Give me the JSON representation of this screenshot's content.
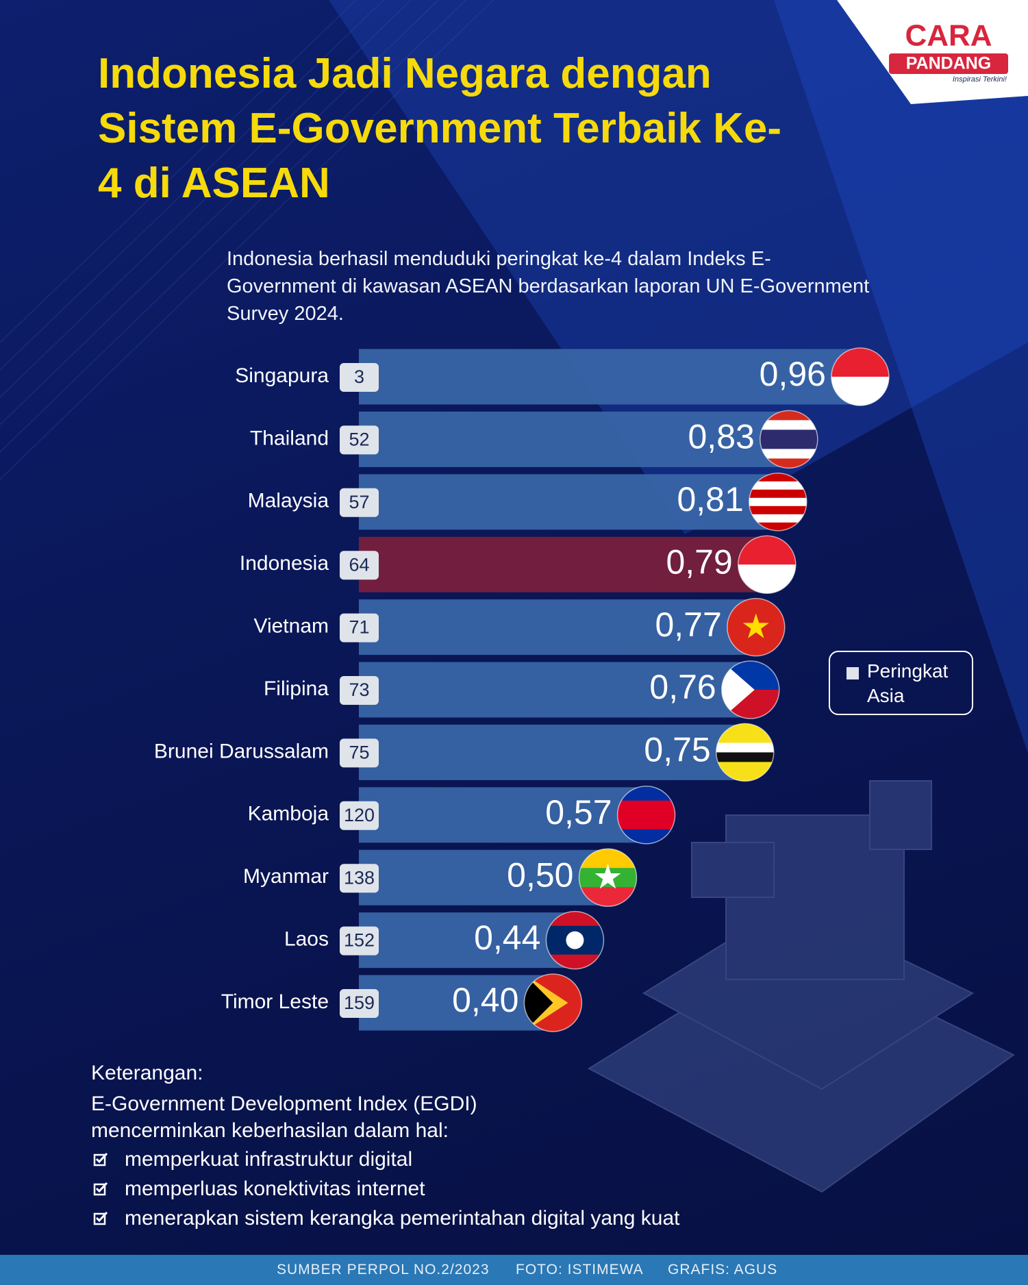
{
  "header": {
    "title": "Indonesia Jadi Negara dengan Sistem E-Government Terbaik Ke-4 di ASEAN",
    "subtitle": "Indonesia berhasil menduduki peringkat ke-4 dalam Indeks E-Government di kawasan ASEAN berdasarkan laporan UN E-Government Survey 2024.",
    "logo": {
      "line1": "CARA",
      "line2": "PANDANG",
      "tagline": "Inspirasi Terkini!"
    }
  },
  "chart_data": {
    "type": "bar",
    "orientation": "horizontal",
    "categories": [
      "Singapura",
      "Thailand",
      "Malaysia",
      "Indonesia",
      "Vietnam",
      "Filipina",
      "Brunei Darussalam",
      "Kamboja",
      "Myanmar",
      "Laos",
      "Timor Leste"
    ],
    "values": [
      0.96,
      0.83,
      0.81,
      0.79,
      0.77,
      0.76,
      0.75,
      0.57,
      0.5,
      0.44,
      0.4
    ],
    "value_labels": [
      "0,96",
      "0,83",
      "0,81",
      "0,79",
      "0,77",
      "0,76",
      "0,75",
      "0,57",
      "0,50",
      "0,44",
      "0,40"
    ],
    "ranks": [
      3,
      52,
      57,
      64,
      71,
      73,
      75,
      120,
      138,
      152,
      159
    ],
    "bar_colors": [
      "#3a67a8",
      "#3a67a8",
      "#3a67a8",
      "#7c1f3c",
      "#3a67a8",
      "#3a67a8",
      "#3a67a8",
      "#3a67a8",
      "#3a67a8",
      "#3a67a8",
      "#3a67a8"
    ],
    "legend": "Peringkat Asia"
  },
  "notes": {
    "heading": "Keterangan:",
    "text": "E-Government Development Index (EGDI) mencerminkan keberhasilan dalam hal:",
    "items": [
      "memperkuat infrastruktur digital",
      "memperluas konektivitas internet",
      "menerapkan sistem kerangka pemerintahan digital yang kuat"
    ]
  },
  "footer": {
    "source": "SUMBER PERPOL NO.2/2023",
    "photo": "FOTO: ISTIMEWA",
    "graphic": "GRAFIS: AGUS"
  }
}
